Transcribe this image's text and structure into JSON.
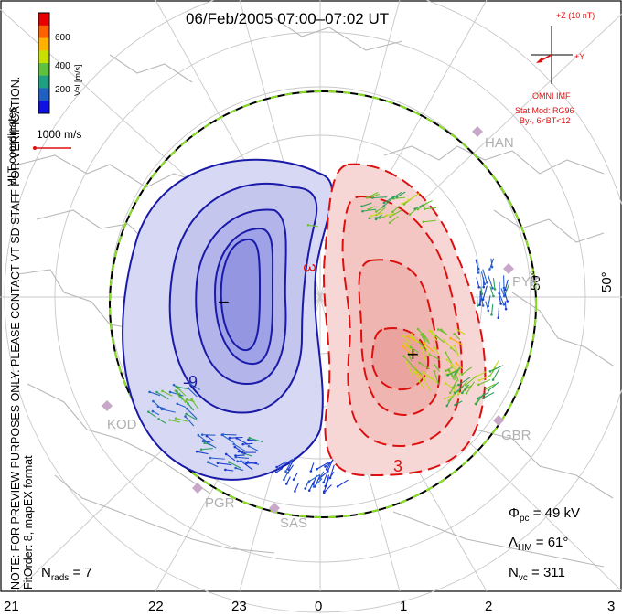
{
  "title": "06/Feb/2005 07:00–07:02 UT",
  "coords_label": "MLT coordinates",
  "colorbar": {
    "label": "Vel [m/s]",
    "ticks": [
      "600",
      "400",
      "200"
    ],
    "colors": [
      "#e80000",
      "#ff6000",
      "#ffb000",
      "#c8e000",
      "#60c040",
      "#20a080",
      "#2060c0",
      "#1010e0"
    ]
  },
  "scale_vector": {
    "label": "1000 m/s",
    "color": "#e01010"
  },
  "note": "NOTE: FOR PREVIEW PURPOSES ONLY. PLEASE CONTACT VT-SD STAFF FOR VERIFICATION.",
  "fit_order": "FitOrder: 8, mapEX format",
  "imf": {
    "z_label": "+Z (10 nT)",
    "y_label": "+Y",
    "source": "OMNI IMF",
    "model_line1": "Stat Mod: RG96",
    "model_line2": "By-, 6<BT<12",
    "color": "#e01010"
  },
  "lat_labels": [
    "50°",
    "50°"
  ],
  "stations": [
    "HAN",
    "PYK",
    "KOD",
    "GBR",
    "PGR",
    "SAS"
  ],
  "contour_labels": {
    "negative": "-9",
    "positive": "3",
    "positive_bottom": "3"
  },
  "mlt_ticks": [
    "21",
    "22",
    "23",
    "0",
    "1",
    "2",
    "3"
  ],
  "stats": {
    "phi_pc": "Φ",
    "phi_pc_sub": "pc",
    "phi_pc_value": "= 49 kV",
    "lambda_hm": "Λ",
    "lambda_hm_sub": "HM",
    "lambda_hm_value": "= 61°",
    "n_vc": "N",
    "n_vc_sub": "vc",
    "n_vc_value": "= 311",
    "n_rads": "N",
    "n_rads_sub": "rads",
    "n_rads_value": "= 7"
  },
  "convection": {
    "min_marker": "−",
    "max_marker": "+",
    "neg_color": "#1a1aa8",
    "pos_color": "#dd1010"
  }
}
